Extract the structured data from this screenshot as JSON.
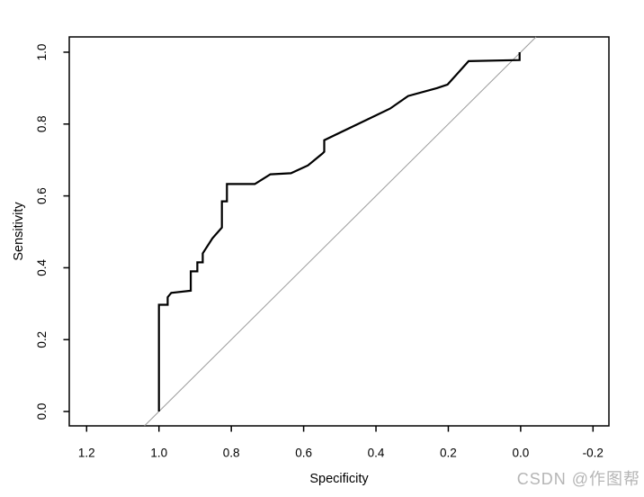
{
  "figure": {
    "background": "#ffffff",
    "border_color": "#000000",
    "tick_color": "#000000"
  },
  "watermark": {
    "text": "CSDN @作图帮",
    "color": "#b5b5b5"
  },
  "chart_data": {
    "type": "line",
    "subtype": "roc_curve",
    "title": "",
    "xlabel": "Specificity",
    "ylabel": "Sensitivity",
    "x_reversed": true,
    "grid": false,
    "legend": "none",
    "xlim": [
      1.248,
      -0.244
    ],
    "ylim": [
      -0.04,
      1.0425
    ],
    "x_tick_labels": [
      "1.2",
      "1.0",
      "0.8",
      "0.6",
      "0.4",
      "0.2",
      "0.0",
      "-0.2"
    ],
    "x_tick_values": [
      1.2,
      1.0,
      0.8,
      0.6,
      0.4,
      0.2,
      0.0,
      -0.2
    ],
    "y_tick_labels": [
      "0.0",
      "0.2",
      "0.4",
      "0.6",
      "0.8",
      "1.0"
    ],
    "y_tick_values": [
      0.0,
      0.2,
      0.4,
      0.6,
      0.8,
      1.0
    ],
    "series": [
      {
        "name": "roc-curve",
        "color": "#000000",
        "stroke_width": 2.2,
        "points": [
          [
            1.0,
            0.0
          ],
          [
            1.0,
            0.297
          ],
          [
            0.976,
            0.297
          ],
          [
            0.976,
            0.318
          ],
          [
            0.966,
            0.33
          ],
          [
            0.912,
            0.336
          ],
          [
            0.912,
            0.39
          ],
          [
            0.894,
            0.39
          ],
          [
            0.894,
            0.415
          ],
          [
            0.879,
            0.415
          ],
          [
            0.879,
            0.44
          ],
          [
            0.852,
            0.482
          ],
          [
            0.826,
            0.512
          ],
          [
            0.826,
            0.585
          ],
          [
            0.812,
            0.585
          ],
          [
            0.812,
            0.633
          ],
          [
            0.735,
            0.633
          ],
          [
            0.692,
            0.66
          ],
          [
            0.635,
            0.663
          ],
          [
            0.588,
            0.685
          ],
          [
            0.548,
            0.718
          ],
          [
            0.543,
            0.723
          ],
          [
            0.543,
            0.755
          ],
          [
            0.361,
            0.843
          ],
          [
            0.311,
            0.878
          ],
          [
            0.232,
            0.9
          ],
          [
            0.202,
            0.91
          ],
          [
            0.144,
            0.975
          ],
          [
            0.003,
            0.978
          ],
          [
            0.003,
            1.0
          ]
        ]
      },
      {
        "name": "chance-diagonal",
        "color": "#9b9b9b",
        "stroke_width": 1,
        "points": [
          [
            1.04,
            -0.04
          ],
          [
            -0.0425,
            1.0425
          ]
        ]
      }
    ]
  }
}
